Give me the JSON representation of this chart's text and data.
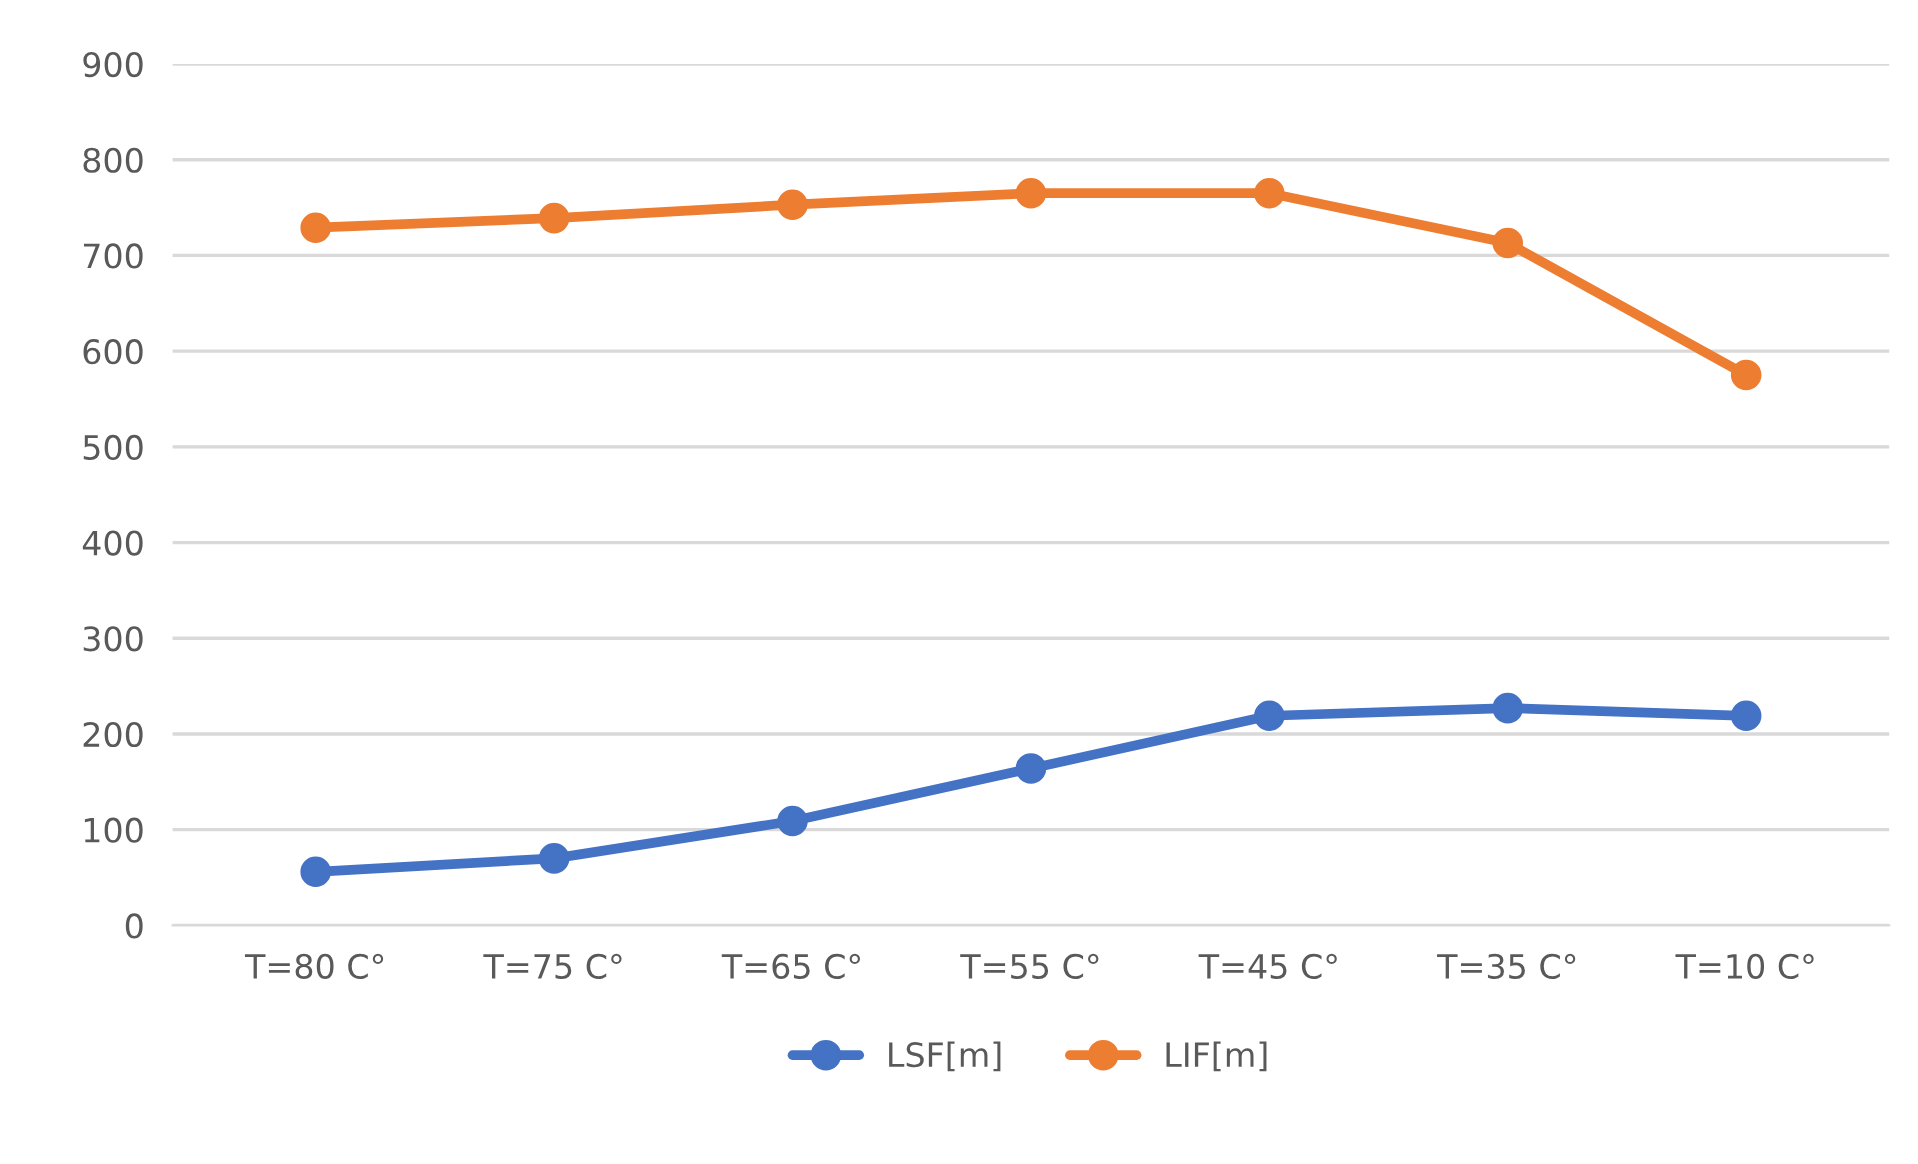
{
  "chart_data": {
    "type": "line",
    "categories": [
      "T=80 C°",
      "T=75 C°",
      "T=65 C°",
      "T=55 C°",
      "T=45 C°",
      "T=35 C°",
      "T=10 C°"
    ],
    "series": [
      {
        "name": "LSF[m]",
        "color": "#4472c4",
        "values": [
          56,
          70,
          109,
          164,
          219,
          227,
          219
        ]
      },
      {
        "name": "LIF[m]",
        "color": "#ed7d31",
        "values": [
          729,
          739,
          753,
          765,
          765,
          713,
          575
        ]
      }
    ],
    "ylim": [
      0,
      900
    ],
    "yticks": [
      0,
      100,
      200,
      300,
      400,
      500,
      600,
      700,
      800,
      900
    ],
    "grid": "y",
    "legend": "bottom",
    "marker": "circle",
    "line_style": "solid"
  }
}
